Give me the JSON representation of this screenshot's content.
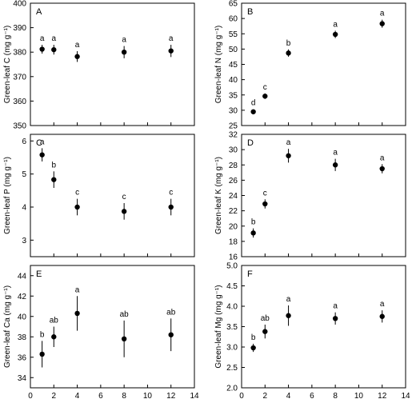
{
  "x_axis_title": "N level (mmol L⁻¹)",
  "chart_data": [
    {
      "type": "scatter",
      "panel": "A",
      "ylabel": "Green-leaf C (mg g⁻¹)",
      "ylim": [
        350,
        400
      ],
      "yticks": [
        350,
        360,
        370,
        380,
        390,
        400
      ],
      "xlim": [
        0,
        14
      ],
      "xticks": [
        0,
        2,
        4,
        6,
        8,
        10,
        12,
        14
      ],
      "show_x_ticklabels": false,
      "show_x_title": false,
      "points": [
        {
          "x": 1,
          "y": 381.2,
          "err": 1.8,
          "label": "a"
        },
        {
          "x": 2,
          "y": 381.0,
          "err": 2.0,
          "label": "a"
        },
        {
          "x": 4,
          "y": 378.2,
          "err": 2.2,
          "label": "a"
        },
        {
          "x": 8,
          "y": 380.0,
          "err": 2.5,
          "label": "a"
        },
        {
          "x": 12,
          "y": 380.5,
          "err": 2.5,
          "label": "a"
        }
      ]
    },
    {
      "type": "scatter",
      "panel": "B",
      "ylabel": "Green-leaf N (mg g⁻¹)",
      "ylim": [
        25,
        65
      ],
      "yticks": [
        25,
        30,
        35,
        40,
        45,
        50,
        55,
        60,
        65
      ],
      "xlim": [
        0,
        14
      ],
      "xticks": [
        0,
        2,
        4,
        6,
        8,
        10,
        12,
        14
      ],
      "show_x_ticklabels": false,
      "show_x_title": false,
      "points": [
        {
          "x": 1,
          "y": 29.5,
          "err": 0.8,
          "label": "d"
        },
        {
          "x": 2,
          "y": 34.6,
          "err": 0.9,
          "label": "c"
        },
        {
          "x": 4,
          "y": 48.7,
          "err": 1.2,
          "label": "b"
        },
        {
          "x": 8,
          "y": 54.8,
          "err": 1.2,
          "label": "a"
        },
        {
          "x": 12,
          "y": 58.3,
          "err": 1.3,
          "label": "a"
        }
      ]
    },
    {
      "type": "scatter",
      "panel": "C",
      "ylabel": "Green-leaf P (mg g⁻¹)",
      "ylim": [
        2.5,
        6.2
      ],
      "yticks": [
        3,
        4,
        5,
        6
      ],
      "xlim": [
        0,
        14
      ],
      "xticks": [
        0,
        2,
        4,
        6,
        8,
        10,
        12,
        14
      ],
      "show_x_ticklabels": false,
      "show_x_title": false,
      "points": [
        {
          "x": 1,
          "y": 5.58,
          "err": 0.2,
          "label": "a"
        },
        {
          "x": 2,
          "y": 4.83,
          "err": 0.25,
          "label": "b"
        },
        {
          "x": 4,
          "y": 4.0,
          "err": 0.25,
          "label": "c"
        },
        {
          "x": 8,
          "y": 3.87,
          "err": 0.25,
          "label": "c"
        },
        {
          "x": 12,
          "y": 4.0,
          "err": 0.25,
          "label": "c"
        }
      ]
    },
    {
      "type": "scatter",
      "panel": "D",
      "ylabel": "Green-leaf K (mg g⁻¹)",
      "ylim": [
        16,
        32
      ],
      "yticks": [
        16,
        18,
        20,
        22,
        24,
        26,
        28,
        30,
        32
      ],
      "xlim": [
        0,
        14
      ],
      "xticks": [
        0,
        2,
        4,
        6,
        8,
        10,
        12,
        14
      ],
      "show_x_ticklabels": false,
      "show_x_title": false,
      "points": [
        {
          "x": 1,
          "y": 19.1,
          "err": 0.6,
          "label": "b"
        },
        {
          "x": 2,
          "y": 22.9,
          "err": 0.6,
          "label": "c"
        },
        {
          "x": 4,
          "y": 29.2,
          "err": 0.9,
          "label": "a"
        },
        {
          "x": 8,
          "y": 28.0,
          "err": 0.8,
          "label": "a"
        },
        {
          "x": 12,
          "y": 27.5,
          "err": 0.6,
          "label": "a"
        }
      ]
    },
    {
      "type": "scatter",
      "panel": "E",
      "ylabel": "Green-leaf Ca (mg g⁻¹)",
      "ylim": [
        33,
        45
      ],
      "yticks": [
        34,
        36,
        38,
        40,
        42,
        44
      ],
      "xlim": [
        0,
        14
      ],
      "xticks": [
        0,
        2,
        4,
        6,
        8,
        10,
        12,
        14
      ],
      "show_x_ticklabels": true,
      "show_x_title": true,
      "points": [
        {
          "x": 1,
          "y": 36.3,
          "err": 1.3,
          "label": "b"
        },
        {
          "x": 2,
          "y": 38.0,
          "err": 1.0,
          "label": "ab"
        },
        {
          "x": 4,
          "y": 40.3,
          "err": 1.7,
          "label": "a"
        },
        {
          "x": 8,
          "y": 37.8,
          "err": 1.8,
          "label": "ab"
        },
        {
          "x": 12,
          "y": 38.2,
          "err": 1.6,
          "label": "ab"
        }
      ]
    },
    {
      "type": "scatter",
      "panel": "F",
      "ylabel": "Green-leaf Mg (mg g⁻¹)",
      "ylim": [
        2.0,
        5.0
      ],
      "yticks": [
        2.0,
        2.5,
        3.0,
        3.5,
        4.0,
        4.5,
        5.0
      ],
      "xlim": [
        0,
        14
      ],
      "xticks": [
        0,
        2,
        4,
        6,
        8,
        10,
        12,
        14
      ],
      "show_x_ticklabels": true,
      "show_x_title": true,
      "points": [
        {
          "x": 1,
          "y": 2.98,
          "err": 0.1,
          "label": "b"
        },
        {
          "x": 2,
          "y": 3.38,
          "err": 0.17,
          "label": "ab"
        },
        {
          "x": 4,
          "y": 3.77,
          "err": 0.25,
          "label": "a"
        },
        {
          "x": 8,
          "y": 3.7,
          "err": 0.15,
          "label": "a"
        },
        {
          "x": 12,
          "y": 3.75,
          "err": 0.15,
          "label": "a"
        }
      ]
    }
  ]
}
